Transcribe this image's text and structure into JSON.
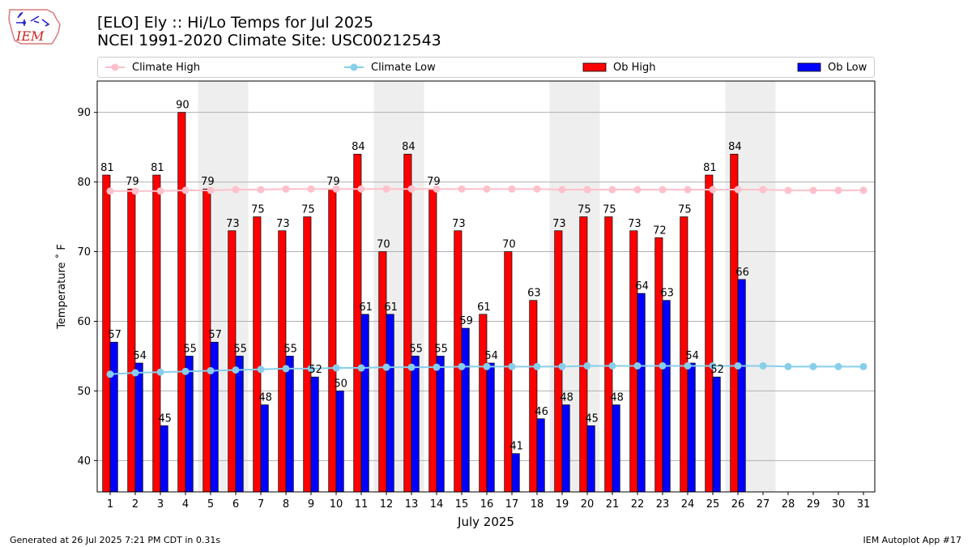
{
  "header": {
    "title_line1": "[ELO] Ely :: Hi/Lo Temps for Jul 2025",
    "title_line2": "NCEI 1991-2020 Climate Site: USC00212543",
    "logo_text": "IEM"
  },
  "footer": {
    "generated": "Generated at 26 Jul 2025 7:21 PM CDT in 0.31s",
    "app": "IEM Autoplot App #17"
  },
  "colors": {
    "ob_high": "#ff0000",
    "ob_low": "#0000ff",
    "climate_high": "#ffc0cb",
    "climate_low": "#87ceeb",
    "weekend_shade": "#eeeeee"
  },
  "chart_data": {
    "type": "bar",
    "title": "[ELO] Ely :: Hi/Lo Temps for Jul 2025",
    "subtitle": "NCEI 1991-2020 Climate Site: USC00212543",
    "xlabel": "July 2025",
    "ylabel": "Temperature ˚ F",
    "ylim": [
      35.5,
      94.5
    ],
    "yticks": [
      40,
      50,
      60,
      70,
      80,
      90
    ],
    "grid": "horizontal",
    "legend_placement": "top",
    "categories": [
      "1",
      "2",
      "3",
      "4",
      "5",
      "6",
      "7",
      "8",
      "9",
      "10",
      "11",
      "12",
      "13",
      "14",
      "15",
      "16",
      "17",
      "18",
      "19",
      "20",
      "21",
      "22",
      "23",
      "24",
      "25",
      "26",
      "27",
      "28",
      "29",
      "30",
      "31"
    ],
    "shaded_days": [
      [
        5,
        6
      ],
      [
        12,
        13
      ],
      [
        19,
        20
      ],
      [
        26,
        27
      ]
    ],
    "series": [
      {
        "name": "Climate High",
        "kind": "line",
        "color": "#ffc0cb",
        "values": [
          78.7,
          78.7,
          78.7,
          78.8,
          78.8,
          78.9,
          78.9,
          79.0,
          79.0,
          79.0,
          79.0,
          79.0,
          79.0,
          79.0,
          79.0,
          79.0,
          79.0,
          79.0,
          78.9,
          78.9,
          78.9,
          78.9,
          78.9,
          78.9,
          78.9,
          78.9,
          78.9,
          78.8,
          78.8,
          78.8,
          78.8
        ]
      },
      {
        "name": "Climate Low",
        "kind": "line",
        "color": "#87ceeb",
        "values": [
          52.4,
          52.6,
          52.7,
          52.8,
          52.9,
          53.0,
          53.1,
          53.2,
          53.2,
          53.3,
          53.3,
          53.4,
          53.4,
          53.4,
          53.5,
          53.5,
          53.5,
          53.5,
          53.5,
          53.6,
          53.6,
          53.6,
          53.6,
          53.6,
          53.6,
          53.6,
          53.6,
          53.5,
          53.5,
          53.5,
          53.5
        ]
      },
      {
        "name": "Ob High",
        "kind": "bar",
        "color": "#ff0000",
        "values": [
          81,
          79,
          81,
          90,
          79,
          73,
          75,
          73,
          75,
          79,
          84,
          70,
          84,
          79,
          73,
          61,
          70,
          63,
          73,
          75,
          75,
          73,
          72,
          75,
          81,
          84,
          null,
          null,
          null,
          null,
          null
        ]
      },
      {
        "name": "Ob Low",
        "kind": "bar",
        "color": "#0000ff",
        "values": [
          57,
          54,
          45,
          55,
          57,
          55,
          48,
          55,
          52,
          50,
          61,
          61,
          55,
          55,
          59,
          54,
          41,
          46,
          48,
          45,
          48,
          64,
          63,
          54,
          52,
          66,
          null,
          null,
          null,
          null,
          null
        ]
      }
    ]
  }
}
